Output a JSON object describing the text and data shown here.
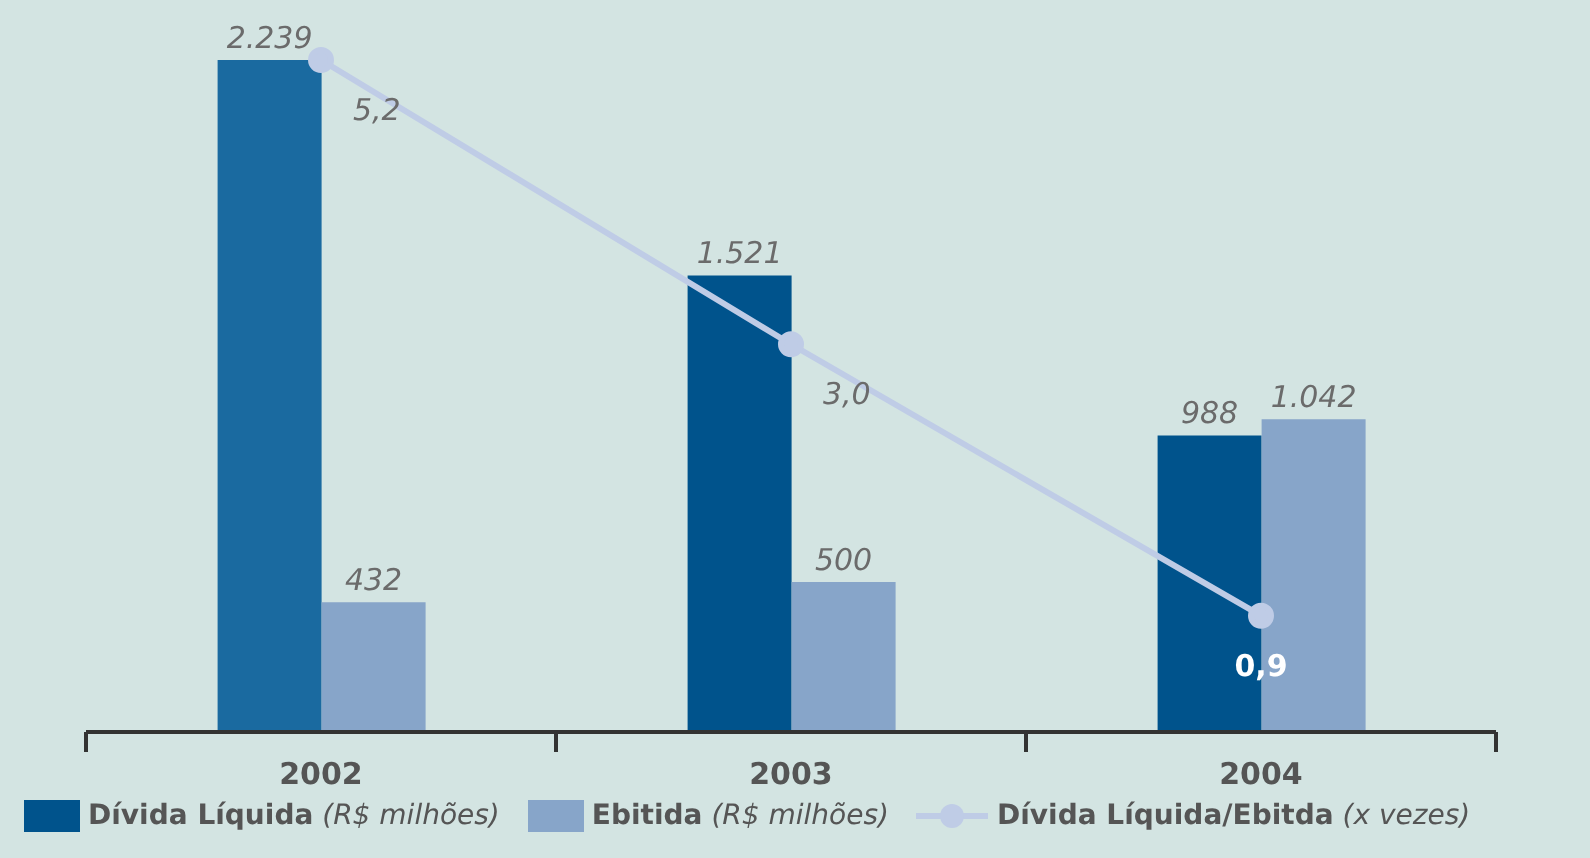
{
  "chart_data": {
    "type": "bar",
    "categories": [
      "2002",
      "2003",
      "2004"
    ],
    "series": [
      {
        "name": "Dívida Líquida (R$ milhões)",
        "color": "#00538c",
        "colors": [
          "#1a6aa0",
          "#00538c",
          "#00538c"
        ],
        "values": [
          2239,
          1521,
          988
        ],
        "value_labels": [
          "2.239",
          "1.521",
          "988"
        ]
      },
      {
        "name": "Ebitida (R$ milhões)",
        "color": "#87a5c9",
        "values": [
          432,
          500,
          1042
        ],
        "value_labels": [
          "432",
          "500",
          "1.042"
        ]
      },
      {
        "name": "Dívida Líquida/Ebitda (x vezes)",
        "type": "line",
        "axis": "y2",
        "color": "#bfcce6",
        "marker": "circle",
        "values": [
          5.2,
          3.0,
          0.9
        ],
        "value_labels": [
          "5,2",
          "3,0",
          "0,9"
        ]
      }
    ],
    "legend": "bottom"
  }
}
